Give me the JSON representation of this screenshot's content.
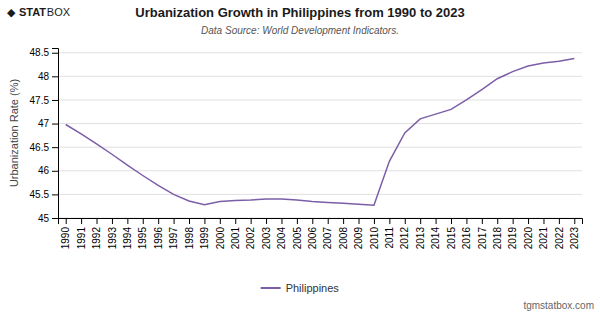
{
  "chart_data": {
    "type": "line",
    "title": "Urbanization Growth in Philippines from 1990 to 2023",
    "subtitle": "Data Source: World Development Indicators.",
    "y_label": "Urbanization Rate (%)",
    "annotations": [
      "tgmstatbox.com",
      "◆",
      "STAT",
      "BOX"
    ],
    "x": [
      1990,
      1991,
      1992,
      1993,
      1994,
      1995,
      1996,
      1997,
      1998,
      1999,
      2000,
      2001,
      2002,
      2003,
      2004,
      2005,
      2006,
      2007,
      2008,
      2009,
      2010,
      2011,
      2012,
      2013,
      2014,
      2015,
      2016,
      2017,
      2018,
      2019,
      2020,
      2021,
      2022,
      2023
    ],
    "series": [
      {
        "name": "Philippines",
        "color": "#7B5EA7",
        "values": [
          46.98,
          46.78,
          46.57,
          46.35,
          46.12,
          45.9,
          45.69,
          45.5,
          45.36,
          45.28,
          45.35,
          45.37,
          45.38,
          45.4,
          45.4,
          45.38,
          45.35,
          45.33,
          45.31,
          45.29,
          45.27,
          46.2,
          46.8,
          47.1,
          47.2,
          47.3,
          47.5,
          47.72,
          47.95,
          48.1,
          48.22,
          48.28,
          48.32,
          48.38
        ]
      }
    ],
    "xlim": [
      1989.5,
      2023.5
    ],
    "xticks": [
      1990,
      1991,
      1992,
      1993,
      1994,
      1995,
      1996,
      1997,
      1998,
      1999,
      2000,
      2001,
      2002,
      2003,
      2004,
      2005,
      2006,
      2007,
      2008,
      2009,
      2010,
      2011,
      2012,
      2013,
      2014,
      2015,
      2016,
      2017,
      2018,
      2019,
      2020,
      2021,
      2022,
      2023
    ],
    "ylim": [
      45,
      48.6
    ],
    "yticks": [
      45,
      45.5,
      46,
      46.5,
      47,
      47.5,
      48,
      48.5
    ],
    "grid": true,
    "legend": "bottom"
  }
}
